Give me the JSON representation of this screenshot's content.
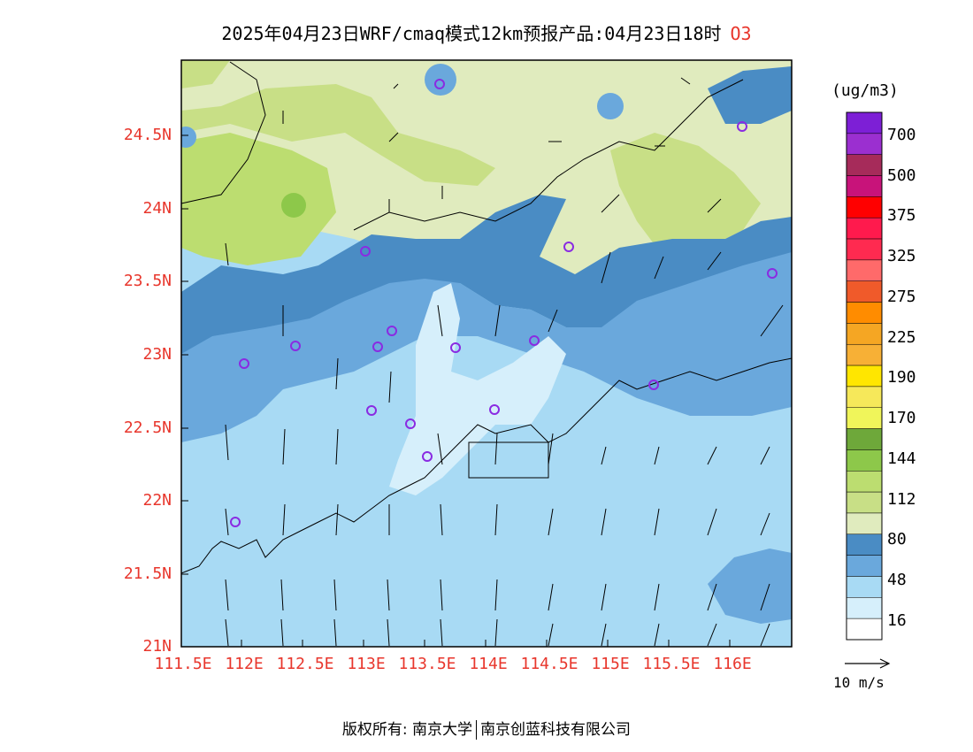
{
  "title": {
    "main": "2025年04月23日WRF/cmaq模式12km预报产品:04月23日18时",
    "variable": "O3"
  },
  "map": {
    "lat_labels": [
      "24.5N",
      "24N",
      "23.5N",
      "23N",
      "22.5N",
      "22N",
      "21.5N",
      "21N"
    ],
    "lon_labels": [
      "111.5E",
      "112E",
      "112.5E",
      "113E",
      "113.5E",
      "114E",
      "114.5E",
      "115E",
      "115.5E",
      "116E"
    ],
    "lat_values": [
      24.5,
      24.0,
      23.5,
      23.0,
      22.5,
      22.0,
      21.5,
      21.0
    ],
    "lon_values": [
      111.5,
      112.0,
      112.5,
      113.0,
      113.5,
      114.0,
      114.5,
      115.0,
      115.5,
      116.0
    ],
    "extent": {
      "lon_min": 111.5,
      "lon_max": 116.6,
      "lat_min": 21.0,
      "lat_max": 25.0
    },
    "wind_direction": "south-southwest"
  },
  "legend": {
    "unit": "(ug/m3)",
    "labels": [
      "700",
      "500",
      "375",
      "325",
      "275",
      "225",
      "190",
      "170",
      "144",
      "112",
      "80",
      "48",
      "16"
    ],
    "colors": [
      "#7d1fd6",
      "#9b2fd0",
      "#a62b5a",
      "#c8137a",
      "#ff0000",
      "#ff1a4d",
      "#ff2a50",
      "#ff6a6a",
      "#f05a2a",
      "#ff8c00",
      "#f5a623",
      "#f7b036",
      "#ffe600",
      "#f6e85a",
      "#f0f55a",
      "#6ea83a",
      "#8dc84a",
      "#bcdd70",
      "#c8df86",
      "#e0ebbe",
      "#4a8cc4",
      "#6aa8dc",
      "#a8daf4",
      "#d6effb",
      "#ffffff"
    ]
  },
  "wind_reference": "10 m/s",
  "footer": {
    "left": "版权所有: 南京大学",
    "right": "南京创蓝科技有限公司"
  }
}
